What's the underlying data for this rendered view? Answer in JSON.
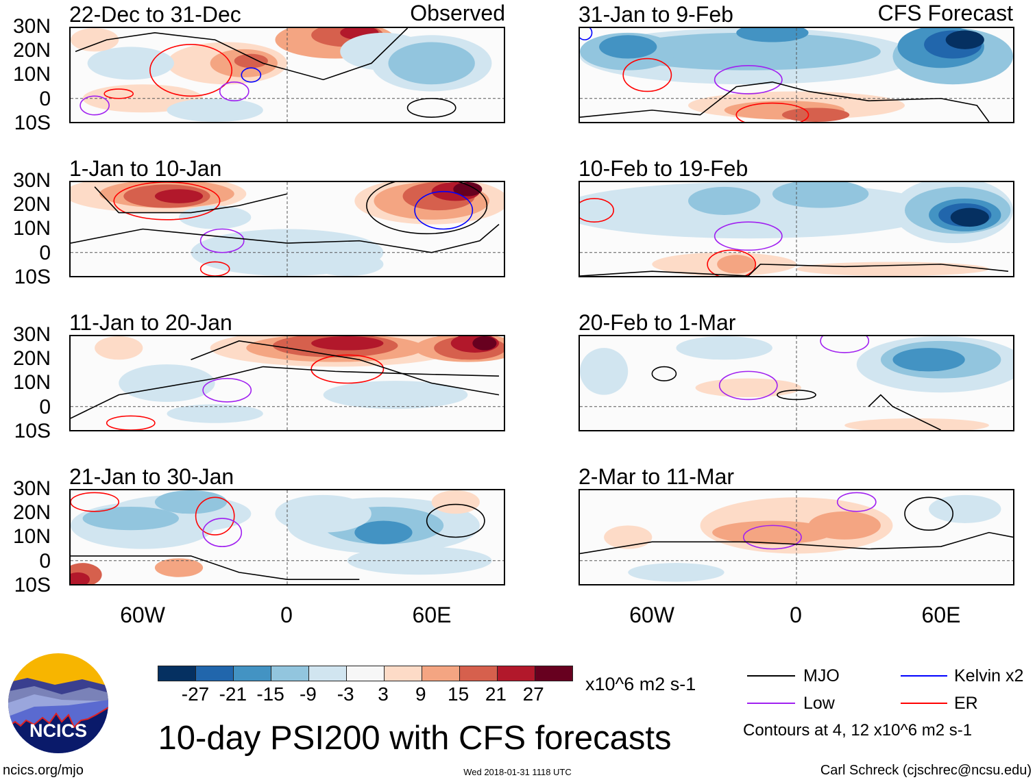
{
  "header": {
    "left_label": "Observed",
    "right_label": "CFS Forecast"
  },
  "panels": [
    {
      "title": "22-Dec to 31-Dec"
    },
    {
      "title": "31-Jan to 9-Feb"
    },
    {
      "title": "1-Jan to 10-Jan"
    },
    {
      "title": "10-Feb to 19-Feb"
    },
    {
      "title": "11-Jan to 20-Jan"
    },
    {
      "title": "20-Feb to 1-Mar"
    },
    {
      "title": "21-Jan to 30-Jan"
    },
    {
      "title": "2-Mar to 11-Mar"
    }
  ],
  "lat_labels": [
    "30N",
    "20N",
    "10N",
    "0",
    "10S"
  ],
  "lon_labels": [
    "60W",
    "0",
    "60E"
  ],
  "colorbar": {
    "colors": [
      "#053061",
      "#2166ac",
      "#4393c3",
      "#92c5de",
      "#d1e5f0",
      "#f7f7f7",
      "#fddbc7",
      "#f4a582",
      "#d6604d",
      "#b2182b",
      "#67001f"
    ],
    "labels": [
      "-27",
      "-21",
      "-15",
      "-9",
      "-3",
      "3",
      "9",
      "15",
      "21",
      "27"
    ],
    "units": "x10^6 m2 s-1"
  },
  "legend": {
    "items": [
      {
        "label": "MJO",
        "color": "#000000"
      },
      {
        "label": "Low",
        "color": "#a020f0"
      },
      {
        "label": "Kelvin x2",
        "color": "#0000ff"
      },
      {
        "label": "ER",
        "color": "#ff0000"
      }
    ],
    "note": "Contours at 4, 12 x10^6 m2 s-1"
  },
  "title": "10-day PSI200 with CFS forecasts",
  "logo": {
    "text": "NCICS"
  },
  "footer": {
    "url": "ncics.org/mjo",
    "timestamp": "Wed 2018-01-31 1118 UTC",
    "credit": "Carl Schreck (cjschrec@ncsu.edu)"
  }
}
